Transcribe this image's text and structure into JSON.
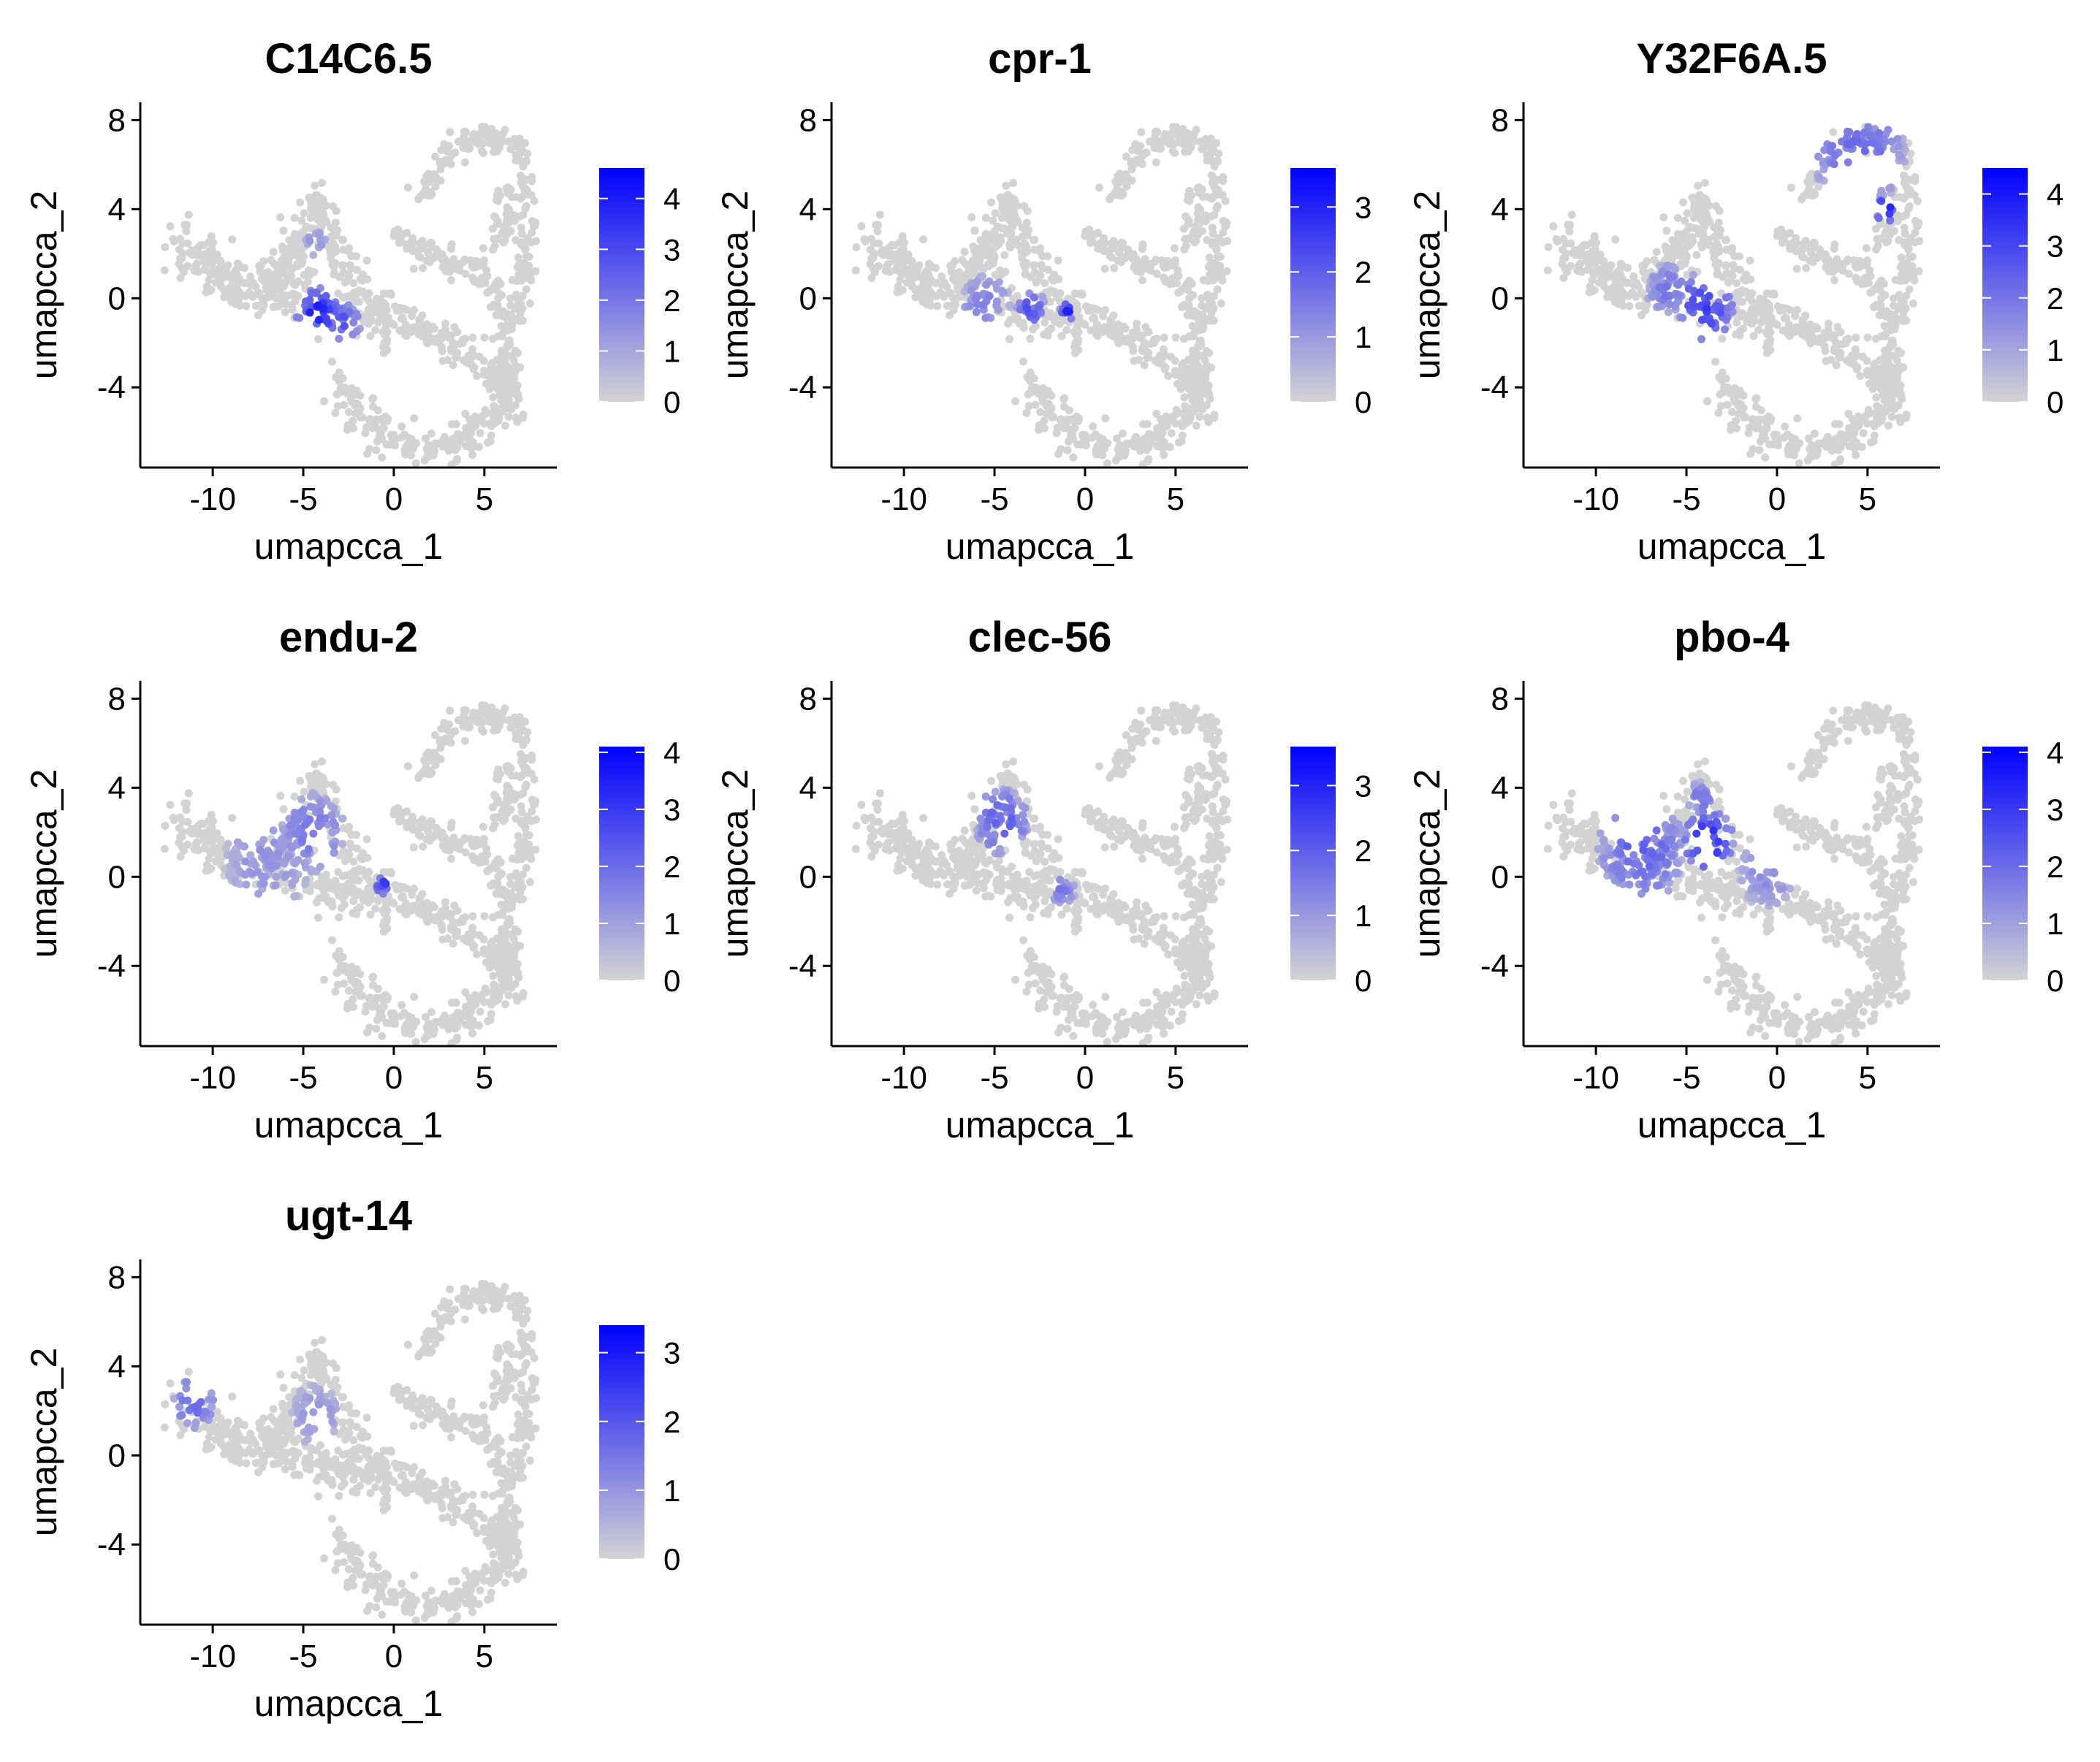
{
  "chart_data": {
    "type": "scatter",
    "style": "feature-plot",
    "panels": [
      {
        "title": "C14C6.5",
        "color_max": 4.6,
        "legend_ticks": [
          0,
          1,
          2,
          3,
          4
        ],
        "hotspots": [
          [
            -4.2,
            -0.6,
            1.2,
            4.3
          ],
          [
            -2.8,
            -1.2,
            1.0,
            3.2
          ],
          [
            -4.3,
            2.5,
            0.6,
            1.8
          ]
        ]
      },
      {
        "title": "cpr-1",
        "color_max": 3.6,
        "legend_ticks": [
          0,
          1,
          2,
          3
        ],
        "hotspots": [
          [
            -5.5,
            -0.3,
            1.4,
            1.6
          ],
          [
            -3.0,
            -0.4,
            0.8,
            2.4
          ],
          [
            -1.0,
            -0.6,
            0.4,
            3.4
          ]
        ]
      },
      {
        "title": "Y32F6A.5",
        "color_max": 4.5,
        "legend_ticks": [
          0,
          1,
          2,
          3,
          4
        ],
        "hotspots": [
          [
            -4.0,
            -0.4,
            1.6,
            3.6
          ],
          [
            -6.0,
            0.4,
            1.2,
            2.2
          ],
          [
            4.5,
            6.6,
            2.6,
            2.4
          ],
          [
            6.0,
            4.0,
            0.6,
            4.4
          ]
        ]
      },
      {
        "title": "endu-2",
        "color_max": 4.1,
        "legend_ticks": [
          0,
          1,
          2,
          3,
          4
        ],
        "hotspots": [
          [
            -4.5,
            2.0,
            1.8,
            2.0
          ],
          [
            -7.0,
            0.8,
            2.4,
            1.4
          ],
          [
            -0.6,
            -0.4,
            0.4,
            3.9
          ]
        ]
      },
      {
        "title": "clec-56",
        "color_max": 3.6,
        "legend_ticks": [
          0,
          1,
          2,
          3
        ],
        "hotspots": [
          [
            -4.6,
            2.5,
            1.5,
            2.2
          ],
          [
            -1.2,
            -0.6,
            0.7,
            1.8
          ]
        ]
      },
      {
        "title": "pbo-4",
        "color_max": 4.1,
        "legend_ticks": [
          0,
          1,
          2,
          3,
          4
        ],
        "hotspots": [
          [
            -3.8,
            1.6,
            1.4,
            3.6
          ],
          [
            -7.5,
            1.2,
            2.4,
            2.4
          ],
          [
            -0.5,
            0.2,
            1.6,
            1.6
          ],
          [
            -4.2,
            3.5,
            0.8,
            2.0
          ]
        ]
      },
      {
        "title": "ugt-14",
        "color_max": 3.4,
        "legend_ticks": [
          0,
          1,
          2,
          3
        ],
        "hotspots": [
          [
            -11.0,
            2.4,
            1.2,
            2.0
          ],
          [
            -4.3,
            1.8,
            1.4,
            1.2
          ]
        ]
      }
    ],
    "xlabel": "umapcca_1",
    "ylabel": "umapcca_2",
    "xlim": [
      -14,
      9
    ],
    "ylim": [
      -7.6,
      8.8
    ],
    "x_ticks": [
      -10,
      -5,
      0,
      5
    ],
    "y_ticks": [
      -4,
      0,
      4,
      8
    ],
    "x_tick_labels": [
      "-10",
      "-5",
      "0",
      "5"
    ],
    "y_tick_labels": [
      "-4",
      "0",
      "4",
      "8"
    ],
    "color_low": "#D3D3D3",
    "color_high": "#0000FF",
    "grid": false,
    "legend_position": "right"
  }
}
